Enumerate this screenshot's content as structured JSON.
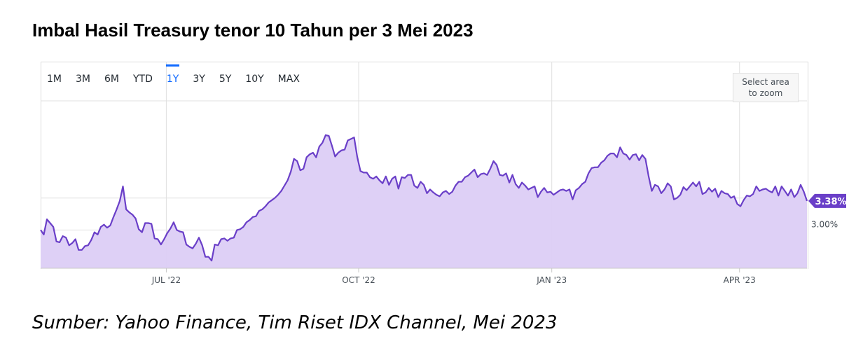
{
  "title": "Imbal Hasil Treasury tenor 10 Tahun per 3 Mei 2023",
  "source": "Sumber: Yahoo Finance, Tim Riset IDX Channel, Mei 2023",
  "range_buttons": [
    {
      "label": "1M",
      "active": false
    },
    {
      "label": "3M",
      "active": false
    },
    {
      "label": "6M",
      "active": false
    },
    {
      "label": "YTD",
      "active": false
    },
    {
      "label": "1Y",
      "active": true
    },
    {
      "label": "3Y",
      "active": false
    },
    {
      "label": "5Y",
      "active": false
    },
    {
      "label": "10Y",
      "active": false
    },
    {
      "label": "MAX",
      "active": false
    }
  ],
  "zoom_hint": "Select area to zoom",
  "colors": {
    "line": "#6a3fc8",
    "fill": "#dccdf5",
    "badge": "#6a3fc8",
    "active_tab": "#0f69ff",
    "grid": "#e0e0e0"
  },
  "chart_data": {
    "type": "area",
    "title": "Imbal Hasil Treasury tenor 10 Tahun per 3 Mei 2023",
    "x_ticks": [
      {
        "label": "JUL '22",
        "pos": 0.164
      },
      {
        "label": "OCT '22",
        "pos": 0.415
      },
      {
        "label": "JAN '23",
        "pos": 0.667
      },
      {
        "label": "APR '23",
        "pos": 0.912
      }
    ],
    "y_label_value": 3.0,
    "y_label_text": "3.00%",
    "last_value": 3.38,
    "last_value_label": "3.38%",
    "ylim": [
      2.5,
      5.2
    ],
    "x_range": [
      "2022-05-04",
      "2023-05-03"
    ],
    "series": [
      {
        "values": [
          3.0,
          2.94,
          3.14,
          3.09,
          3.04,
          2.85,
          2.84,
          2.92,
          2.9,
          2.8,
          2.83,
          2.88,
          2.74,
          2.74,
          2.79,
          2.8,
          2.87,
          2.97,
          2.94,
          3.04,
          3.07,
          3.03,
          3.06,
          3.17,
          3.27,
          3.38,
          3.57,
          3.27,
          3.23,
          3.2,
          3.15,
          3.01,
          2.97,
          3.09,
          3.09,
          3.08,
          2.89,
          2.88,
          2.81,
          2.88,
          2.96,
          3.02,
          3.1,
          3.0,
          2.98,
          2.97,
          2.81,
          2.78,
          2.76,
          2.82,
          2.9,
          2.8,
          2.65,
          2.65,
          2.6,
          2.81,
          2.8,
          2.88,
          2.89,
          2.86,
          2.89,
          2.9,
          3.0,
          3.01,
          3.04,
          3.1,
          3.13,
          3.17,
          3.18,
          3.25,
          3.27,
          3.31,
          3.36,
          3.39,
          3.42,
          3.46,
          3.51,
          3.58,
          3.65,
          3.76,
          3.93,
          3.9,
          3.78,
          3.8,
          3.95,
          3.99,
          4.01,
          3.95,
          4.09,
          4.14,
          4.24,
          4.23,
          4.1,
          3.96,
          4.01,
          4.04,
          4.05,
          4.17,
          4.19,
          4.21,
          3.95,
          3.77,
          3.75,
          3.75,
          3.69,
          3.67,
          3.7,
          3.65,
          3.61,
          3.7,
          3.59,
          3.67,
          3.7,
          3.54,
          3.69,
          3.68,
          3.72,
          3.72,
          3.58,
          3.55,
          3.63,
          3.59,
          3.48,
          3.53,
          3.49,
          3.46,
          3.44,
          3.49,
          3.51,
          3.47,
          3.5,
          3.58,
          3.63,
          3.63,
          3.69,
          3.71,
          3.75,
          3.79,
          3.69,
          3.73,
          3.74,
          3.72,
          3.8,
          3.9,
          3.85,
          3.72,
          3.71,
          3.74,
          3.62,
          3.72,
          3.6,
          3.55,
          3.62,
          3.58,
          3.53,
          3.55,
          3.57,
          3.43,
          3.5,
          3.55,
          3.49,
          3.5,
          3.46,
          3.49,
          3.52,
          3.53,
          3.51,
          3.53,
          3.4,
          3.52,
          3.55,
          3.6,
          3.63,
          3.74,
          3.81,
          3.82,
          3.82,
          3.88,
          3.91,
          3.97,
          4.0,
          4.0,
          3.95,
          4.08,
          4.0,
          3.98,
          3.92,
          3.98,
          3.99,
          3.91,
          3.98,
          3.93,
          3.7,
          3.51,
          3.59,
          3.57,
          3.48,
          3.53,
          3.61,
          3.57,
          3.4,
          3.42,
          3.46,
          3.56,
          3.52,
          3.57,
          3.62,
          3.57,
          3.63,
          3.47,
          3.49,
          3.55,
          3.5,
          3.54,
          3.43,
          3.51,
          3.48,
          3.47,
          3.42,
          3.44,
          3.34,
          3.31,
          3.39,
          3.45,
          3.44,
          3.47,
          3.57,
          3.51,
          3.53,
          3.54,
          3.51,
          3.49,
          3.57,
          3.45,
          3.57,
          3.51,
          3.45,
          3.53,
          3.43,
          3.48,
          3.59,
          3.5,
          3.38
        ]
      }
    ]
  }
}
